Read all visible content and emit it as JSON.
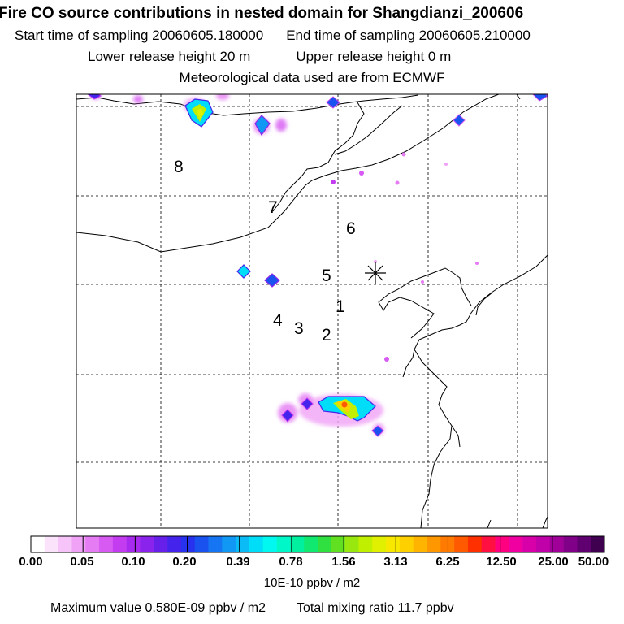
{
  "header": {
    "title": "Fire CO source contributions in nested domain for Shangdianzi_200606",
    "start_label": "Start time of sampling 20060605.180000",
    "end_label": "End time of sampling 20060605.210000",
    "lower_release": "Lower release height   20 m",
    "upper_release": "Upper release height    0 m",
    "met_data": "Meteorological data used are from ECMWF"
  },
  "map": {
    "release_labels": [
      "1",
      "2",
      "3",
      "4",
      "5",
      "6",
      "7",
      "8"
    ],
    "receptor_marker": "*"
  },
  "colorbar": {
    "tick_labels": [
      "0.00",
      "0.05",
      "0.10",
      "0.20",
      "0.39",
      "0.78",
      "1.56",
      "3.13",
      "6.25",
      "12.50",
      "25.00",
      "50.00"
    ],
    "units": "10E-10 ppbv / m2",
    "colors": [
      "#ffffff",
      "#fbe3fb",
      "#f6c4f8",
      "#f0a2f6",
      "#e57cf3",
      "#d75af2",
      "#c33cf0",
      "#a82aee",
      "#8a23ec",
      "#6620ea",
      "#4423ec",
      "#2632ee",
      "#1a52f0",
      "#1675f2",
      "#1098f4",
      "#0abbf6",
      "#00ddf8",
      "#00f8f0",
      "#00f8c8",
      "#00f0a0",
      "#10e870",
      "#30e040",
      "#60e020",
      "#98e810",
      "#c0f000",
      "#e0f000",
      "#f8e800",
      "#ffd000",
      "#ffb400",
      "#ff9800",
      "#ff7a00",
      "#ff5a00",
      "#ff3000",
      "#ff1040",
      "#ff0080",
      "#f000a0",
      "#d800a8",
      "#c000a8",
      "#a00098",
      "#800088",
      "#600070",
      "#400050"
    ]
  },
  "footer": {
    "max_value": "Maximum value  0.580E-09 ppbv / m2",
    "total_mixing": "Total mixing ratio       11.7 ppbv"
  }
}
